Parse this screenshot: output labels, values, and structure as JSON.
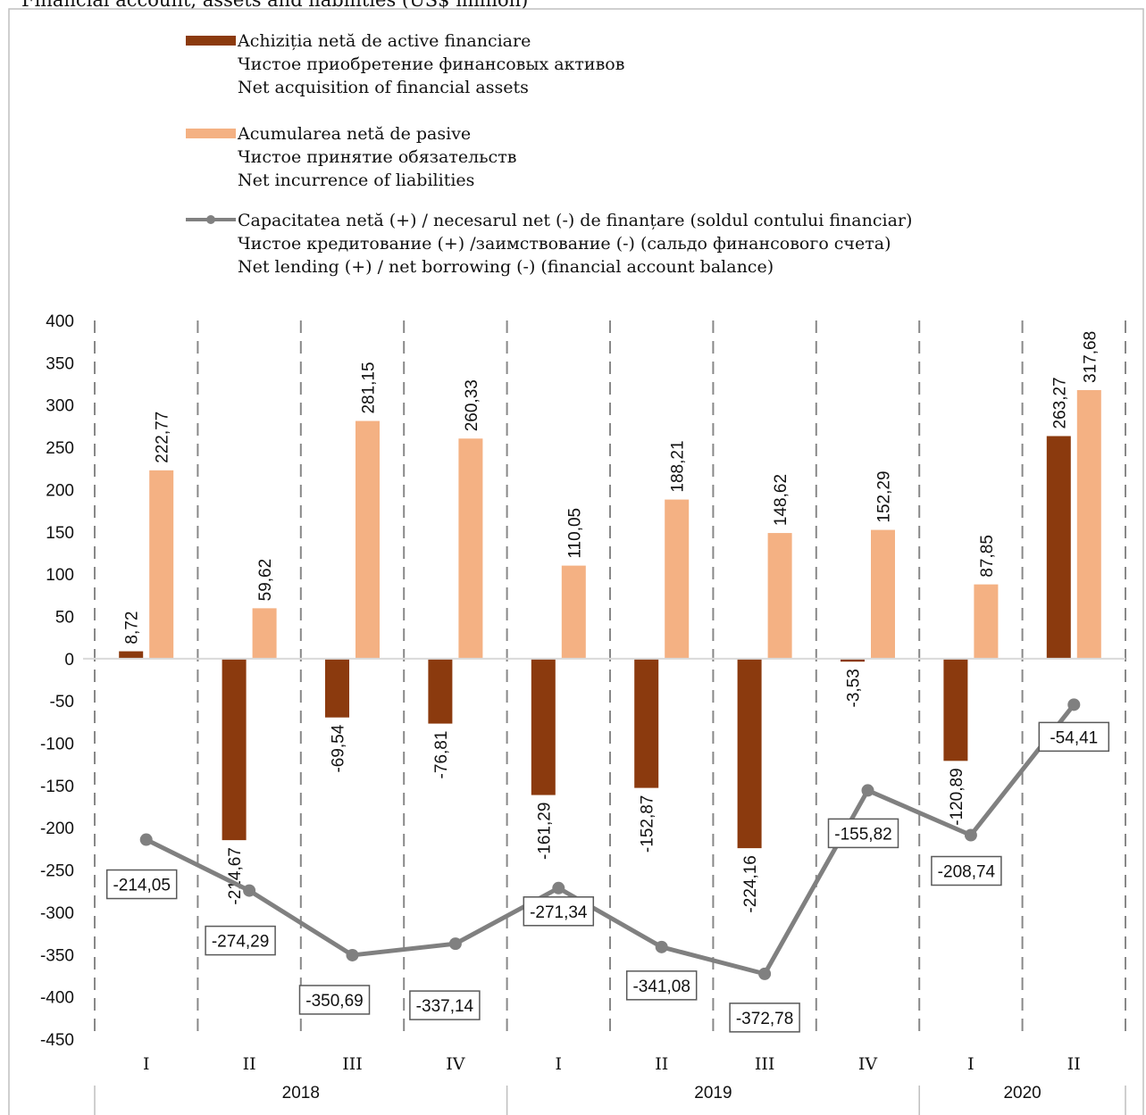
{
  "title": "Financial account, assets and liabilities (US$ million)",
  "colors": {
    "assets": "#8b3a0e",
    "liabilities": "#f4b183",
    "balance": "#808080",
    "border": "#bfbfbf",
    "divider": "#888888"
  },
  "chart_data": {
    "type": "bar",
    "categories": [
      "I",
      "II",
      "III",
      "IV",
      "I",
      "II",
      "III",
      "IV",
      "I",
      "II"
    ],
    "years": [
      {
        "label": "2018",
        "span": 4
      },
      {
        "label": "2019",
        "span": 4
      },
      {
        "label": "2020",
        "span": 2
      }
    ],
    "ylim": [
      -450,
      400
    ],
    "yticks": [
      400,
      350,
      300,
      250,
      200,
      150,
      100,
      50,
      0,
      -50,
      -100,
      -150,
      -200,
      -250,
      -300,
      -350,
      -400,
      -450
    ],
    "grid": false,
    "legend_position": "top",
    "series": [
      {
        "key": "assets",
        "type": "bar",
        "legend": [
          "Achiziția netă de active financiare",
          "Чистое приобретение финансовых активов",
          "Net acquisition of financial assets"
        ],
        "values": [
          8.72,
          -214.67,
          -69.54,
          -76.81,
          -161.29,
          -152.87,
          -224.16,
          -3.53,
          -120.89,
          263.27
        ],
        "labels": [
          "8,72",
          "-214,67",
          "-69,54",
          "-76,81",
          "-161,29",
          "-152,87",
          "-224,16",
          "-3,53",
          "-120,89",
          "263,27"
        ]
      },
      {
        "key": "liabilities",
        "type": "bar",
        "legend": [
          "Acumularea netă de pasive",
          "Чистое принятие обязательств",
          "Net incurrence of liabilities"
        ],
        "values": [
          222.77,
          59.62,
          281.15,
          260.33,
          110.05,
          188.21,
          148.62,
          152.29,
          87.85,
          317.68
        ],
        "labels": [
          "222,77",
          "59,62",
          "281,15",
          "260,33",
          "110,05",
          "188,21",
          "148,62",
          "152,29",
          "87,85",
          "317,68"
        ]
      },
      {
        "key": "balance",
        "type": "line",
        "legend": [
          "Capacitatea netă (+) / necesarul net (-) de finanțare (soldul contului financiar)",
          "Чистое кредитование (+) /заимствование (-) (сальдо финансового счета)",
          "Net lending (+) / net borrowing (-) (financial account balance)"
        ],
        "values": [
          -214.05,
          -274.29,
          -350.69,
          -337.14,
          -271.34,
          -341.08,
          -372.78,
          -155.82,
          -208.74,
          -54.41
        ],
        "labels": [
          "-214,05",
          "-274,29",
          "-350,69",
          "-337,14",
          "-271,34",
          "-341,08",
          "-372,78",
          "-155,82",
          "-208,74",
          "-54,41"
        ]
      }
    ]
  }
}
